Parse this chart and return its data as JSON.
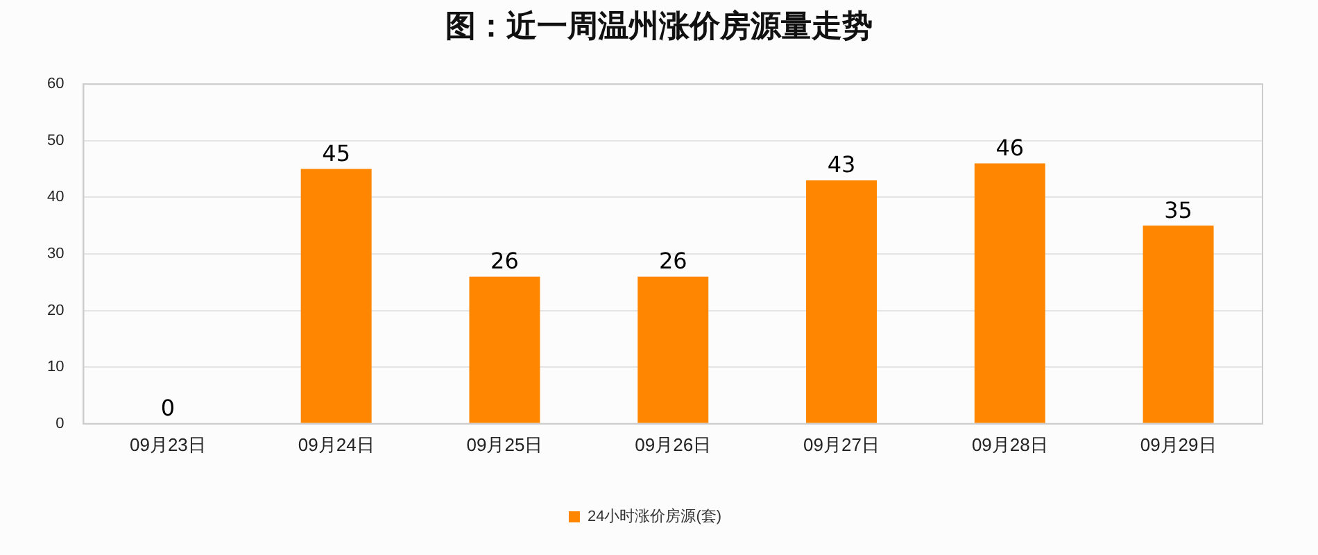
{
  "chart_data": {
    "type": "bar",
    "title": "图：近一周温州涨价房源量走势",
    "categories": [
      "09月23日",
      "09月24日",
      "09月25日",
      "09月26日",
      "09月27日",
      "09月28日",
      "09月29日"
    ],
    "series": [
      {
        "name": "24小时涨价房源(套)",
        "color": "#ff8600",
        "values": [
          0,
          45,
          26,
          26,
          43,
          46,
          35
        ]
      }
    ],
    "ylim": [
      0,
      60
    ],
    "yticks": [
      0,
      10,
      20,
      30,
      40,
      50,
      60
    ],
    "grid": "y",
    "legend": "bottom",
    "data_labels": true
  }
}
